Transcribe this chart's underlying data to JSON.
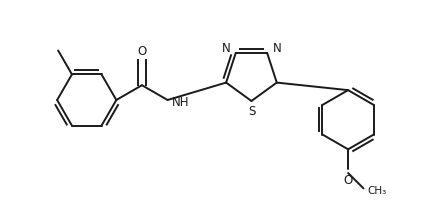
{
  "background_color": "#ffffff",
  "line_color": "#1a1a1a",
  "lw": 1.4,
  "fs": 8.5,
  "figsize": [
    4.23,
    2.03
  ],
  "dpi": 100,
  "xlim": [
    0,
    4.23
  ],
  "ylim": [
    0,
    2.03
  ]
}
